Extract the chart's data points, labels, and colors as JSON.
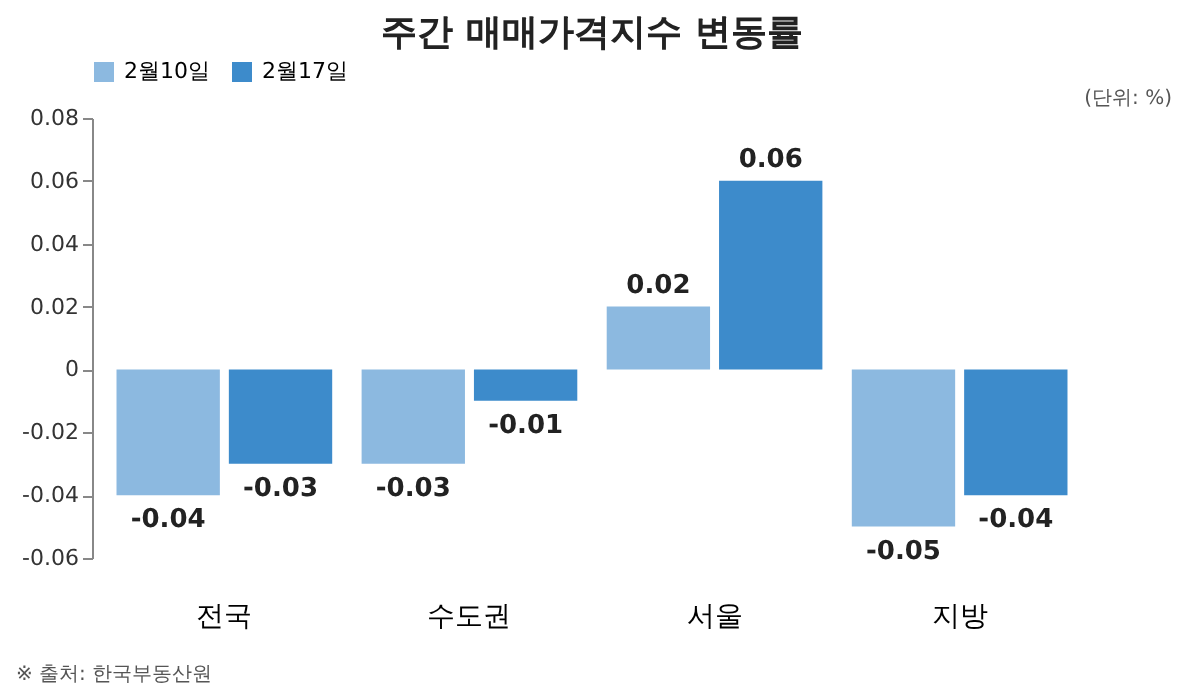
{
  "chart_data": {
    "type": "bar",
    "title": "주간 매매가격지수 변동률",
    "categories": [
      "전국",
      "수도권",
      "서울",
      "지방"
    ],
    "series": [
      {
        "name": "2월10일",
        "color": "#8cb9e0",
        "values": [
          -0.04,
          -0.03,
          0.02,
          -0.05
        ]
      },
      {
        "name": "2월17일",
        "color": "#3d8bcb",
        "values": [
          -0.03,
          -0.01,
          0.06,
          -0.04
        ]
      }
    ],
    "ylim": [
      -0.06,
      0.08
    ],
    "yticks": [
      -0.06,
      -0.04,
      -0.02,
      0,
      0.02,
      0.04,
      0.06,
      0.08
    ],
    "data_labels": true,
    "legend": "top",
    "grid": false,
    "annotations": [
      "(단위: %)",
      "※ 출처: 한국부동산원"
    ]
  }
}
